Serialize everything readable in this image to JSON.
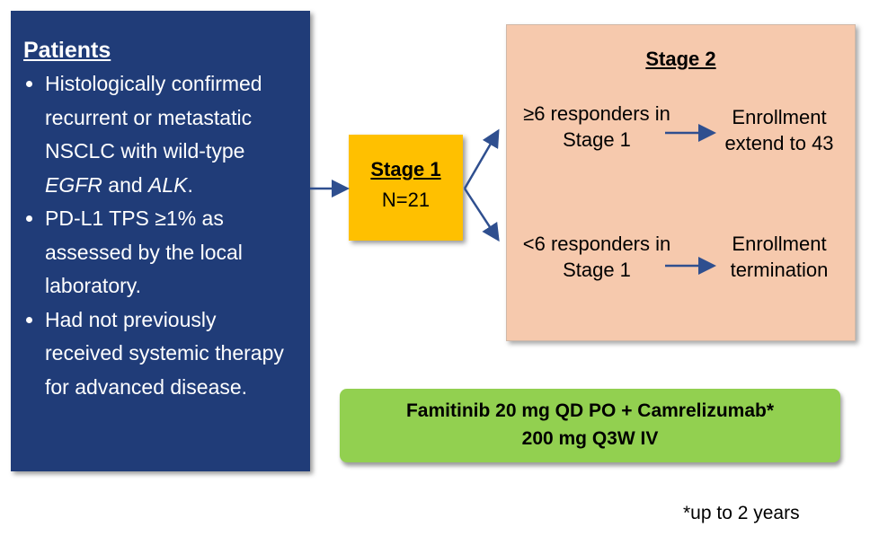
{
  "patients": {
    "title": "Patients",
    "criteria": [
      {
        "pre": "Histologically confirmed recurrent or metastatic NSCLC with wild-type ",
        "em1": "EGFR",
        "mid": " and ",
        "em2": "ALK",
        "post": "."
      },
      {
        "text": "PD-L1 TPS ≥1% as assessed by the local laboratory."
      },
      {
        "text": "Had not previously received systemic therapy for advanced disease."
      }
    ]
  },
  "stage1": {
    "title": "Stage 1",
    "n": "N=21"
  },
  "stage2": {
    "title": "Stage 2",
    "branch_high": {
      "condition": "≥6 responders in Stage 1",
      "outcome": "Enrollment extend to 43"
    },
    "branch_low": {
      "condition": "<6 responders in Stage 1",
      "outcome": "Enrollment termination"
    }
  },
  "treatment": {
    "line1": "Famitinib 20 mg QD PO + Camrelizumab*",
    "line2": "200 mg Q3W IV"
  },
  "footnote": "*up to 2 years",
  "colors": {
    "patients": "#203c78",
    "stage1": "#ffc000",
    "stage2": "#f6c9ad",
    "treatment": "#92d050",
    "arrow": "#2f4f8f"
  }
}
